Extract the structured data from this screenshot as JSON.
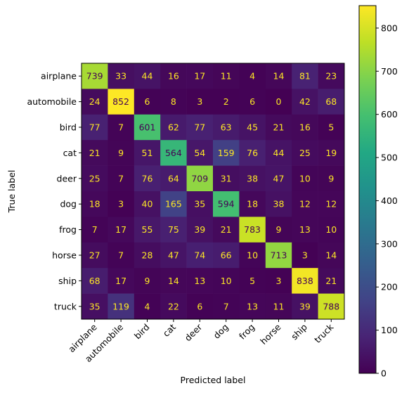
{
  "chart_data": {
    "type": "heatmap",
    "xlabel": "Predicted label",
    "ylabel": "True label",
    "x_categories": [
      "airplane",
      "automobile",
      "bird",
      "cat",
      "deer",
      "dog",
      "frog",
      "horse",
      "ship",
      "truck"
    ],
    "y_categories": [
      "airplane",
      "automobile",
      "bird",
      "cat",
      "deer",
      "dog",
      "frog",
      "horse",
      "ship",
      "truck"
    ],
    "matrix": [
      [
        739,
        33,
        44,
        16,
        17,
        11,
        4,
        14,
        81,
        23
      ],
      [
        24,
        852,
        6,
        8,
        3,
        2,
        6,
        0,
        42,
        68
      ],
      [
        77,
        7,
        601,
        62,
        77,
        63,
        45,
        21,
        16,
        5
      ],
      [
        21,
        9,
        51,
        564,
        54,
        159,
        76,
        44,
        25,
        19
      ],
      [
        25,
        7,
        76,
        64,
        709,
        31,
        38,
        47,
        10,
        9
      ],
      [
        18,
        3,
        40,
        165,
        35,
        594,
        18,
        38,
        12,
        12
      ],
      [
        7,
        17,
        55,
        75,
        39,
        21,
        783,
        9,
        13,
        10
      ],
      [
        27,
        7,
        28,
        47,
        74,
        66,
        10,
        713,
        3,
        14
      ],
      [
        68,
        17,
        9,
        14,
        13,
        10,
        5,
        3,
        838,
        21
      ],
      [
        35,
        119,
        4,
        22,
        6,
        7,
        13,
        11,
        39,
        788
      ]
    ],
    "colormap": "viridis",
    "value_range": [
      0,
      852
    ],
    "colorbar_ticks": [
      0,
      100,
      200,
      300,
      400,
      500,
      600,
      700,
      800
    ],
    "grid": false,
    "x_tick_rotation_deg": 45
  }
}
